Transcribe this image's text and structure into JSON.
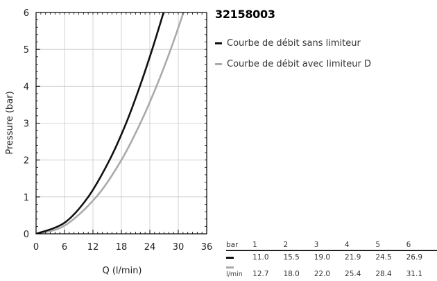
{
  "chart_data": {
    "type": "line",
    "title": "32158003",
    "xlabel": "Q (l/min)",
    "ylabel": "Pressure (bar)",
    "xlim": [
      0,
      36
    ],
    "ylim": [
      0,
      6
    ],
    "xticks": [
      "0",
      "6",
      "12",
      "18",
      "24",
      "30",
      "36"
    ],
    "yticks": [
      "0",
      "1",
      "2",
      "3",
      "4",
      "5",
      "6"
    ],
    "grid": true,
    "legend_position": "right",
    "series": [
      {
        "name": "Courbe de débit sans limiteur",
        "color": "#111111",
        "x": [
          0,
          6,
          11.0,
          15.5,
          19.0,
          21.9,
          24.5,
          26.9
        ],
        "y": [
          0,
          0.3,
          1,
          2,
          3,
          4,
          5,
          6
        ]
      },
      {
        "name": "Courbe de débit avec limiteur D",
        "color": "#aaaaaa",
        "x": [
          0,
          6,
          12.7,
          18.0,
          22.0,
          25.4,
          28.4,
          31.1
        ],
        "y": [
          0,
          0.22,
          1,
          2,
          3,
          4,
          5,
          6
        ]
      }
    ]
  },
  "flow_table": {
    "header_label": "bar",
    "unit_label": "l/min",
    "bars": [
      "1",
      "2",
      "3",
      "4",
      "5",
      "6"
    ],
    "rows": [
      {
        "color": "#111111",
        "values": [
          "11.0",
          "15.5",
          "19.0",
          "21.9",
          "24.5",
          "26.9"
        ]
      },
      {
        "color": "#aaaaaa",
        "values": [
          "12.7",
          "18.0",
          "22.0",
          "25.4",
          "28.4",
          "31.1"
        ]
      }
    ]
  }
}
